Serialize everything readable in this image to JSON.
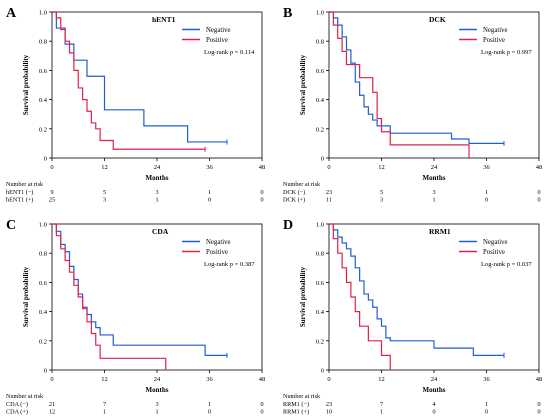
{
  "chart_data": [
    {
      "type": "line",
      "panel": "A",
      "title": "hENT1",
      "xlabel": "Months",
      "ylabel": "Survival probability",
      "xlim": [
        0,
        48
      ],
      "ylim": [
        0,
        1.0
      ],
      "xticks": [
        "0",
        "12",
        "24",
        "36",
        "48"
      ],
      "yticks": [
        "0",
        "0.2",
        "0.4",
        "0.6",
        "0.8",
        "1.0"
      ],
      "grid": false,
      "legend_position": "top-right",
      "annotation": "Log-rank p = 0.114",
      "series": [
        {
          "name": "Negative",
          "color": "#1f5fd0",
          "x": [
            0,
            1,
            2,
            3,
            4,
            5,
            8,
            12,
            14,
            21,
            24,
            31,
            36,
            40
          ],
          "y": [
            1.0,
            0.89,
            0.89,
            0.78,
            0.78,
            0.67,
            0.56,
            0.33,
            0.33,
            0.22,
            0.22,
            0.11,
            0.11,
            0.11
          ]
        },
        {
          "name": "Positive",
          "color": "#e0224a",
          "x": [
            0,
            1,
            2,
            3,
            4,
            5,
            6,
            7,
            8,
            9,
            10,
            11,
            12,
            14,
            35
          ],
          "y": [
            1.0,
            0.96,
            0.88,
            0.8,
            0.72,
            0.6,
            0.48,
            0.4,
            0.32,
            0.24,
            0.2,
            0.12,
            0.12,
            0.06,
            0.06
          ]
        }
      ],
      "risk_table": {
        "header": "Number at risk",
        "rows": [
          {
            "label": "hENT1 (−)",
            "values": [
              "9",
              "5",
              "3",
              "1",
              "0"
            ]
          },
          {
            "label": "hENT1 (+)",
            "values": [
              "25",
              "3",
              "1",
              "0",
              "0"
            ]
          }
        ]
      }
    },
    {
      "type": "line",
      "panel": "B",
      "title": "DCK",
      "xlabel": "Months",
      "ylabel": "Survival probability",
      "xlim": [
        0,
        48
      ],
      "ylim": [
        0,
        1.0
      ],
      "xticks": [
        "0",
        "12",
        "24",
        "36",
        "48"
      ],
      "yticks": [
        "0",
        "0.2",
        "0.4",
        "0.6",
        "0.8",
        "1.0"
      ],
      "grid": false,
      "legend_position": "top-right",
      "annotation": "Log-rank p = 0.997",
      "series": [
        {
          "name": "Negative",
          "color": "#1f5fd0",
          "x": [
            0,
            1,
            2,
            3,
            4,
            5,
            6,
            7,
            8,
            9,
            10,
            11,
            12,
            14,
            28,
            32,
            40
          ],
          "y": [
            1.0,
            0.96,
            0.91,
            0.83,
            0.74,
            0.65,
            0.52,
            0.43,
            0.35,
            0.3,
            0.26,
            0.22,
            0.22,
            0.17,
            0.13,
            0.1,
            0.1
          ]
        },
        {
          "name": "Positive",
          "color": "#e0224a",
          "x": [
            0,
            1,
            2,
            3,
            4,
            5,
            7,
            10,
            11,
            12,
            14,
            32
          ],
          "y": [
            1.0,
            0.91,
            0.82,
            0.73,
            0.64,
            0.64,
            0.55,
            0.45,
            0.27,
            0.18,
            0.09,
            0.0
          ]
        }
      ],
      "risk_table": {
        "header": "Number at risk",
        "rows": [
          {
            "label": "DCK (−)",
            "values": [
              "23",
              "5",
              "3",
              "1",
              "0"
            ]
          },
          {
            "label": "DCK (+)",
            "values": [
              "11",
              "3",
              "1",
              "0",
              "0"
            ]
          }
        ]
      }
    },
    {
      "type": "line",
      "panel": "C",
      "title": "CDA",
      "xlabel": "Months",
      "ylabel": "Survival probability",
      "xlim": [
        0,
        48
      ],
      "ylim": [
        0,
        1.0
      ],
      "xticks": [
        "0",
        "12",
        "24",
        "36",
        "48"
      ],
      "yticks": [
        "0",
        "0.2",
        "0.4",
        "0.6",
        "0.8",
        "1.0"
      ],
      "grid": false,
      "legend_position": "top-right",
      "annotation": "Log-rank p = 0.387",
      "series": [
        {
          "name": "Negative",
          "color": "#1f5fd0",
          "x": [
            0,
            1,
            2,
            3,
            4,
            5,
            6,
            7,
            8,
            9,
            10,
            11,
            12,
            14,
            35,
            40
          ],
          "y": [
            1.0,
            0.95,
            0.86,
            0.81,
            0.71,
            0.62,
            0.52,
            0.43,
            0.38,
            0.33,
            0.29,
            0.24,
            0.24,
            0.17,
            0.1,
            0.1
          ]
        },
        {
          "name": "Positive",
          "color": "#e0224a",
          "x": [
            0,
            1,
            2,
            3,
            4,
            5,
            6,
            7,
            8,
            9,
            10,
            11,
            12,
            14,
            26
          ],
          "y": [
            1.0,
            0.92,
            0.83,
            0.75,
            0.67,
            0.58,
            0.5,
            0.42,
            0.33,
            0.25,
            0.17,
            0.08,
            0.08,
            0.08,
            0.0
          ]
        }
      ],
      "risk_table": {
        "header": "Number at risk",
        "rows": [
          {
            "label": "CDA (−)",
            "values": [
              "21",
              "7",
              "3",
              "1",
              "0"
            ]
          },
          {
            "label": "CDA (+)",
            "values": [
              "12",
              "1",
              "1",
              "0",
              "0"
            ]
          }
        ]
      }
    },
    {
      "type": "line",
      "panel": "D",
      "title": "RRM1",
      "xlabel": "Months",
      "ylabel": "Survival probability",
      "xlim": [
        0,
        48
      ],
      "ylim": [
        0,
        1.0
      ],
      "xticks": [
        "0",
        "12",
        "24",
        "36",
        "48"
      ],
      "yticks": [
        "0",
        "0.2",
        "0.4",
        "0.6",
        "0.8",
        "1.0"
      ],
      "grid": false,
      "legend_position": "top-right",
      "annotation": "Log-rank p = 0.037",
      "series": [
        {
          "name": "Negative",
          "color": "#1f5fd0",
          "x": [
            0,
            1,
            2,
            3,
            4,
            5,
            6,
            7,
            8,
            9,
            10,
            11,
            12,
            13,
            14,
            24,
            33,
            40
          ],
          "y": [
            1.0,
            0.96,
            0.91,
            0.87,
            0.83,
            0.78,
            0.7,
            0.61,
            0.52,
            0.48,
            0.43,
            0.35,
            0.3,
            0.22,
            0.2,
            0.15,
            0.1,
            0.1
          ]
        },
        {
          "name": "Positive",
          "color": "#e0224a",
          "x": [
            0,
            1,
            2,
            3,
            4,
            5,
            6,
            7,
            9,
            10,
            12,
            14
          ],
          "y": [
            1.0,
            0.9,
            0.8,
            0.7,
            0.6,
            0.5,
            0.4,
            0.3,
            0.2,
            0.2,
            0.1,
            0.0
          ]
        }
      ],
      "risk_table": {
        "header": "Number at risk",
        "rows": [
          {
            "label": "RRM1 (−)",
            "values": [
              "23",
              "7",
              "4",
              "1",
              "0"
            ]
          },
          {
            "label": "RRM1 (+)",
            "values": [
              "10",
              "1",
              "0",
              "0",
              "0"
            ]
          }
        ]
      }
    }
  ]
}
